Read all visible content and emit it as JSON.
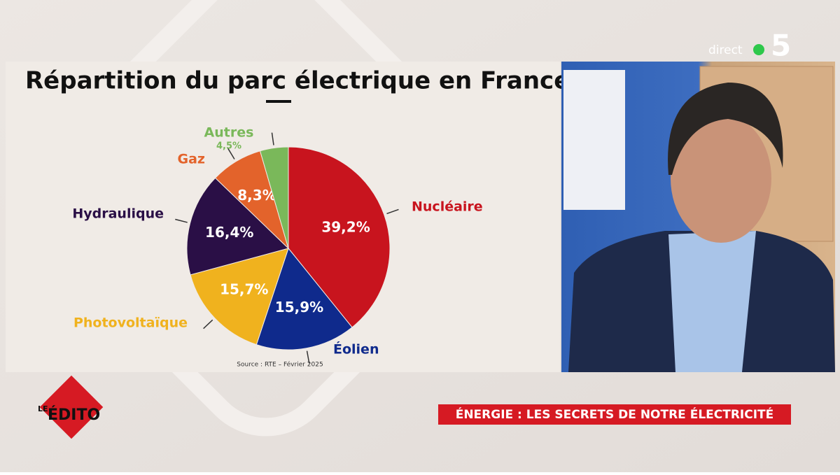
{
  "chart_data": {
    "type": "pie",
    "title": "Répartition du parc électrique en France",
    "source": "Source : RTE – Février 2025",
    "categories": [
      "Nucléaire",
      "Éolien",
      "Photovoltaïque",
      "Hydraulique",
      "Gaz",
      "Autres"
    ],
    "values": [
      39.2,
      15.9,
      15.7,
      16.4,
      8.3,
      4.5
    ],
    "value_labels": [
      "39,2%",
      "15,9%",
      "15,7%",
      "16,4%",
      "8,3%",
      "4,5%"
    ],
    "colors": [
      "#c8141e",
      "#0f2a8c",
      "#f0b21e",
      "#2a0f46",
      "#e3632b",
      "#7ab85a"
    ]
  },
  "broadcast": {
    "channel_live": "direct",
    "channel_number": "5",
    "show_logo_top": "LE",
    "show_logo_main": "ÉDITO",
    "headline": "ÉNERGIE : LES SECRETS DE NOTRE ÉLECTRICITÉ"
  }
}
